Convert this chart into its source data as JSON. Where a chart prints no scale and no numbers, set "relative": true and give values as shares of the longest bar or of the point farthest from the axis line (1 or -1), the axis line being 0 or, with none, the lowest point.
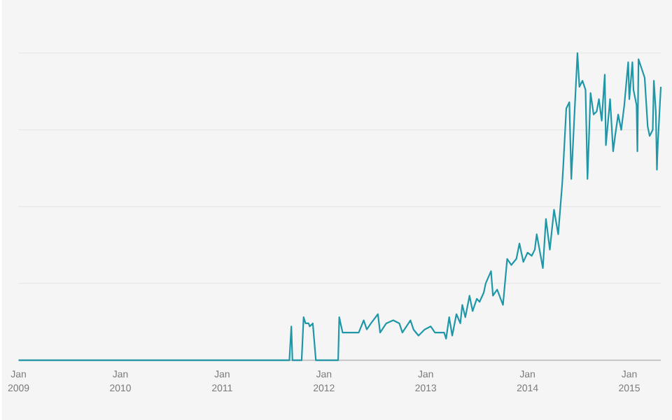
{
  "chart_data": {
    "type": "line",
    "relative": true,
    "color": "#1f97a8",
    "grid": "y",
    "xlim": [
      "2009-01-01",
      "2015-04-24"
    ],
    "xticks": [
      {
        "value": "2009-01-01",
        "label": "Jan 2009"
      },
      {
        "value": "2010-01-01",
        "label": "Jan 2010"
      },
      {
        "value": "2011-01-01",
        "label": "Jan 2011"
      },
      {
        "value": "2012-01-01",
        "label": "Jan 2012"
      },
      {
        "value": "2013-01-01",
        "label": "Jan 2013"
      },
      {
        "value": "2014-01-01",
        "label": "Jan 2014"
      },
      {
        "value": "2015-01-01",
        "label": "Jan 2015"
      }
    ],
    "x": [
      "2009-01-01",
      "2011-08-30",
      "2011-09-06",
      "2011-09-10",
      "2011-10-13",
      "2011-10-20",
      "2011-10-27",
      "2011-11-07",
      "2011-11-11",
      "2011-11-22",
      "2011-12-03",
      "2012-02-21",
      "2012-02-25",
      "2012-03-08",
      "2012-05-05",
      "2012-05-23",
      "2012-06-03",
      "2012-06-18",
      "2012-07-13",
      "2012-07-21",
      "2012-08-12",
      "2012-09-06",
      "2012-09-28",
      "2012-10-09",
      "2012-11-07",
      "2012-11-18",
      "2012-12-06",
      "2012-12-28",
      "2013-01-19",
      "2013-02-03",
      "2013-03-08",
      "2013-03-15",
      "2013-03-26",
      "2013-04-06",
      "2013-04-21",
      "2013-05-05",
      "2013-05-12",
      "2013-05-23",
      "2013-06-07",
      "2013-06-18",
      "2013-07-03",
      "2013-07-13",
      "2013-07-28",
      "2013-08-04",
      "2013-08-23",
      "2013-08-30",
      "2013-09-14",
      "2013-10-05",
      "2013-10-20",
      "2013-11-04",
      "2013-11-22",
      "2013-12-03",
      "2013-12-17",
      "2014-01-01",
      "2014-01-16",
      "2014-01-27",
      "2014-02-03",
      "2014-02-25",
      "2014-03-08",
      "2014-03-22",
      "2014-04-06",
      "2014-04-21",
      "2014-05-05",
      "2014-05-09",
      "2014-05-20",
      "2014-05-31",
      "2014-06-07",
      "2014-06-29",
      "2014-07-06",
      "2014-07-17",
      "2014-07-28",
      "2014-08-04",
      "2014-08-15",
      "2014-08-26",
      "2014-09-06",
      "2014-09-14",
      "2014-09-24",
      "2014-10-05",
      "2014-10-09",
      "2014-10-24",
      "2014-11-04",
      "2014-11-11",
      "2014-11-22",
      "2014-12-03",
      "2014-12-14",
      "2014-12-21",
      "2014-12-28",
      "2015-01-01",
      "2015-01-12",
      "2015-01-16",
      "2015-01-27",
      "2015-01-30",
      "2015-02-03",
      "2015-02-14",
      "2015-02-25",
      "2015-03-08",
      "2015-03-15",
      "2015-03-26",
      "2015-03-30",
      "2015-04-06",
      "2015-04-10",
      "2015-04-13",
      "2015-04-24"
    ],
    "values": [
      0,
      0,
      0.11,
      0,
      0,
      0.14,
      0.12,
      0.12,
      0.11,
      0.12,
      0,
      0,
      0.14,
      0.09,
      0.09,
      0.13,
      0.1,
      0.12,
      0.15,
      0.09,
      0.12,
      0.13,
      0.12,
      0.09,
      0.13,
      0.1,
      0.08,
      0.1,
      0.11,
      0.09,
      0.09,
      0.07,
      0.14,
      0.08,
      0.15,
      0.12,
      0.18,
      0.14,
      0.21,
      0.16,
      0.2,
      0.19,
      0.22,
      0.25,
      0.29,
      0.21,
      0.23,
      0.18,
      0.33,
      0.31,
      0.33,
      0.38,
      0.32,
      0.35,
      0.34,
      0.36,
      0.41,
      0.3,
      0.46,
      0.36,
      0.49,
      0.41,
      0.57,
      0.63,
      0.82,
      0.84,
      0.59,
      1.0,
      0.89,
      0.91,
      0.88,
      0.59,
      0.87,
      0.8,
      0.81,
      0.85,
      0.78,
      0.93,
      0.7,
      0.85,
      0.68,
      0.73,
      0.8,
      0.75,
      0.83,
      0.9,
      0.97,
      0.85,
      0.97,
      0.88,
      0.83,
      0.68,
      0.98,
      0.95,
      0.92,
      0.76,
      0.73,
      0.75,
      0.91,
      0.81,
      0.62,
      0.7,
      0.89
    ]
  }
}
